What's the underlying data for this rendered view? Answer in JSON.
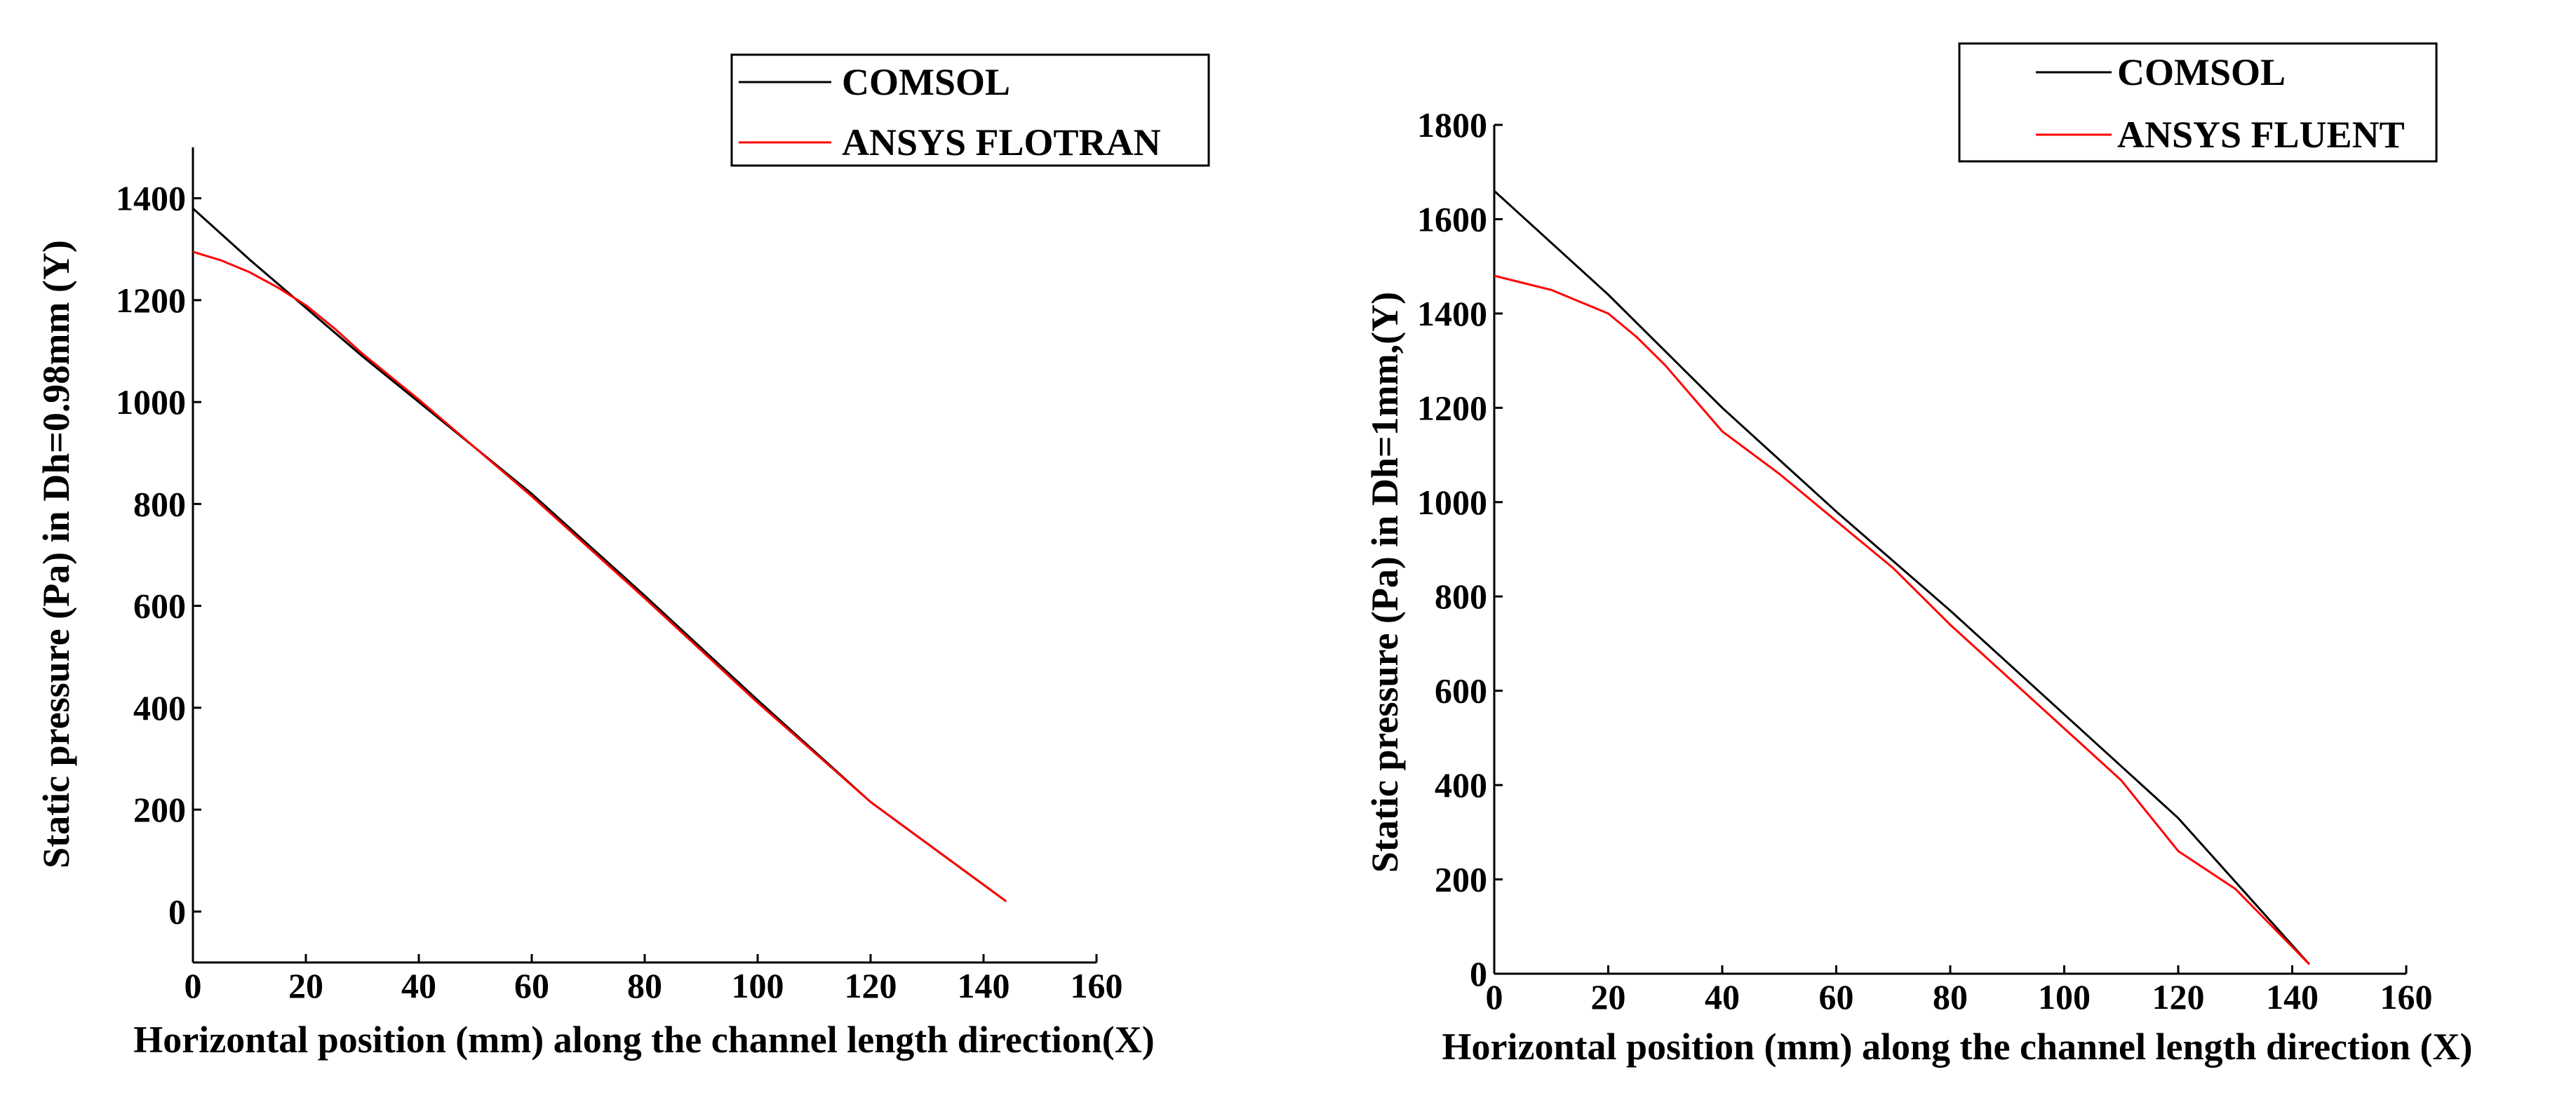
{
  "chart_data": [
    {
      "type": "line",
      "xlabel": "Horizontal position (mm) along the channel length direction(X)",
      "ylabel": "Static pressure (Pa) in Dh=0.98mm (Y)",
      "xlim": [
        0,
        160
      ],
      "ylim": [
        -100,
        1500
      ],
      "xticks": [
        0,
        20,
        40,
        60,
        80,
        100,
        120,
        140,
        160
      ],
      "yticks": [
        0,
        200,
        400,
        600,
        800,
        1000,
        1200,
        1400
      ],
      "grid": false,
      "legend_position": "top-right",
      "series": [
        {
          "name": "COMSOL",
          "color": "#000000",
          "x": [
            0,
            10,
            20,
            30,
            40,
            60,
            80,
            100,
            120,
            144
          ],
          "y": [
            1380,
            1280,
            1185,
            1090,
            1000,
            820,
            620,
            415,
            215,
            20
          ]
        },
        {
          "name": "ANSYS FLOTRAN",
          "color": "#ff0000",
          "x": [
            0,
            5,
            10,
            15,
            20,
            25,
            30,
            40,
            60,
            80,
            100,
            120,
            144
          ],
          "y": [
            1295,
            1278,
            1255,
            1225,
            1190,
            1145,
            1095,
            1005,
            815,
            615,
            410,
            215,
            20
          ]
        }
      ]
    },
    {
      "type": "line",
      "xlabel": "Horizontal position (mm) along the channel length direction (X)",
      "ylabel": "Static pressure (Pa) in Dh=1mm,(Y)",
      "xlim": [
        0,
        160
      ],
      "ylim": [
        0,
        1800
      ],
      "xticks": [
        0,
        20,
        40,
        60,
        80,
        100,
        120,
        140,
        160
      ],
      "yticks": [
        0,
        200,
        400,
        600,
        800,
        1000,
        1200,
        1400,
        1600,
        1800
      ],
      "grid": false,
      "legend_position": "top-right",
      "series": [
        {
          "name": "COMSOL",
          "color": "#000000",
          "x": [
            0,
            20,
            40,
            60,
            80,
            100,
            120,
            143
          ],
          "y": [
            1660,
            1440,
            1200,
            980,
            770,
            550,
            330,
            20
          ]
        },
        {
          "name": "ANSYS FLUENT",
          "color": "#ff0000",
          "x": [
            0,
            10,
            20,
            25,
            30,
            35,
            40,
            50,
            60,
            70,
            80,
            90,
            100,
            110,
            120,
            130,
            143
          ],
          "y": [
            1480,
            1450,
            1400,
            1350,
            1290,
            1220,
            1150,
            1060,
            960,
            860,
            740,
            630,
            520,
            410,
            260,
            180,
            20
          ]
        }
      ]
    }
  ]
}
